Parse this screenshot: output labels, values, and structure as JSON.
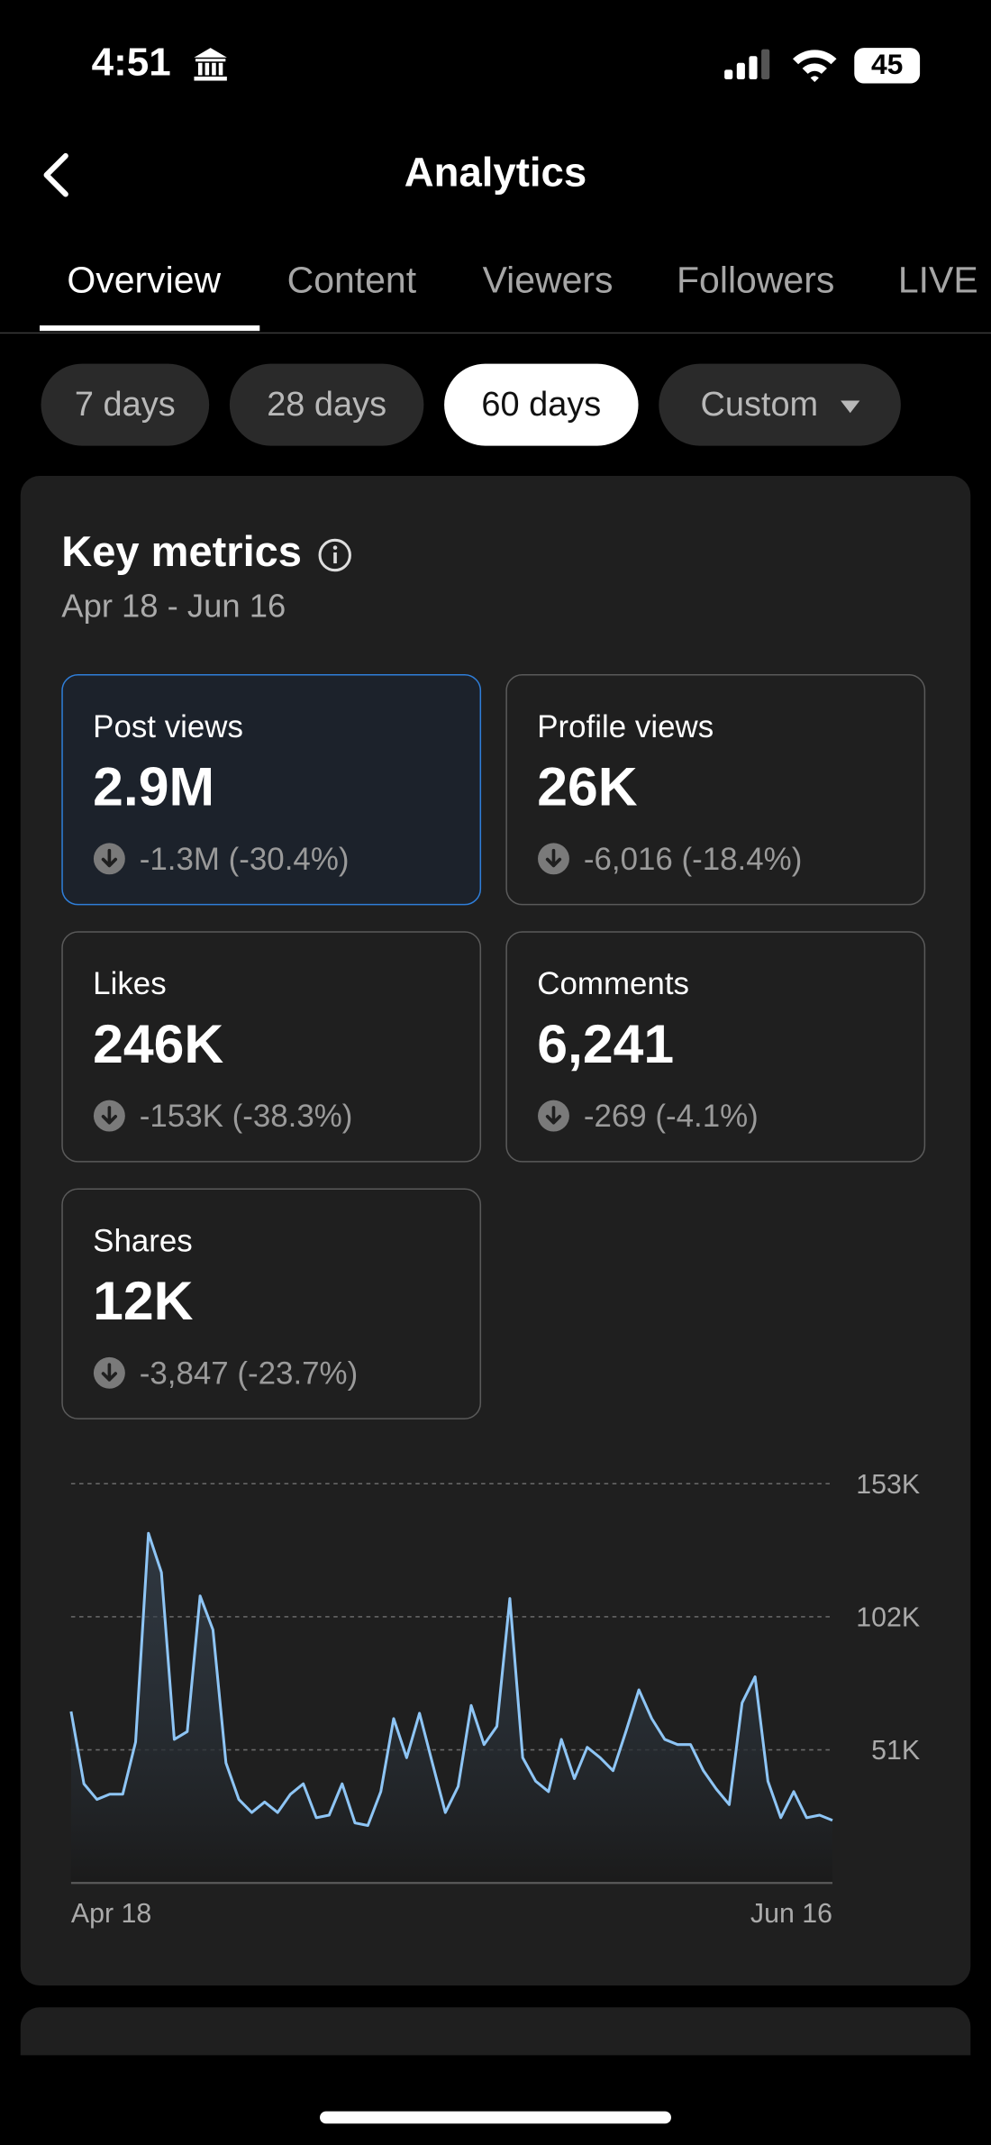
{
  "status_bar": {
    "time": "4:51",
    "battery": "45"
  },
  "header": {
    "title": "Analytics"
  },
  "tabs": [
    "Overview",
    "Content",
    "Viewers",
    "Followers",
    "LIVE"
  ],
  "selected_tab": 0,
  "date_ranges": [
    "7 days",
    "28 days",
    "60 days",
    "Custom"
  ],
  "selected_range": 2,
  "key_metrics": {
    "title": "Key metrics",
    "date_range": "Apr 18 - Jun 16",
    "metrics": [
      {
        "label": "Post views",
        "value": "2.9M",
        "change": "-1.3M (-30.4%)"
      },
      {
        "label": "Profile views",
        "value": "26K",
        "change": "-6,016 (-18.4%)"
      },
      {
        "label": "Likes",
        "value": "246K",
        "change": "-153K (-38.3%)"
      },
      {
        "label": "Comments",
        "value": "6,241",
        "change": "-269 (-4.1%)"
      },
      {
        "label": "Shares",
        "value": "12K",
        "change": "-3,847 (-23.7%)"
      }
    ]
  },
  "chart_data": {
    "type": "line",
    "categories": [
      "Apr 18",
      null,
      null,
      null,
      null,
      null,
      null,
      null,
      null,
      null,
      null,
      null,
      null,
      null,
      null,
      null,
      null,
      null,
      null,
      null,
      null,
      null,
      null,
      null,
      null,
      null,
      null,
      null,
      null,
      null,
      null,
      null,
      null,
      null,
      null,
      null,
      null,
      null,
      null,
      null,
      null,
      null,
      null,
      null,
      null,
      null,
      null,
      null,
      null,
      null,
      null,
      null,
      null,
      null,
      null,
      null,
      null,
      null,
      null,
      "Jun 16"
    ],
    "series": [
      {
        "color": "#8ec5f5",
        "values": [
          65700,
          38000,
          32000,
          34000,
          34000,
          54000,
          134000,
          119000,
          55000,
          58000,
          110000,
          97000,
          46000,
          32000,
          27000,
          31000,
          27000,
          34000,
          38000,
          25000,
          26000,
          38000,
          23000,
          22000,
          35000,
          63000,
          48000,
          65000,
          46000,
          27000,
          37000,
          68000,
          53000,
          60000,
          109000,
          48000,
          39000,
          35000,
          55000,
          40000,
          52000,
          48000,
          43000,
          58000,
          74000,
          63000,
          55000,
          53000,
          53000,
          43000,
          36000,
          30000,
          69000,
          79000,
          39000,
          25000,
          35000,
          25000,
          26000,
          24000
        ]
      }
    ],
    "ylim": [
      0,
      153000
    ],
    "yticks": [
      {
        "value": 51000,
        "label": "51K"
      },
      {
        "value": 102000,
        "label": "102K"
      },
      {
        "value": 153000,
        "label": "153K"
      }
    ],
    "grid": true
  }
}
